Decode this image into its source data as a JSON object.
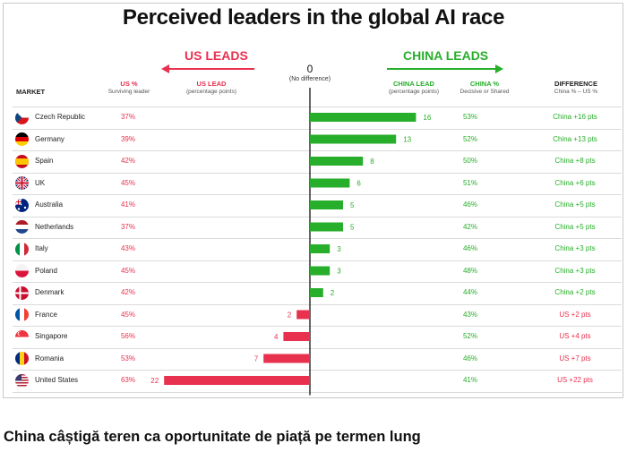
{
  "title": "Perceived leaders in the global AI race",
  "caption": "China câștigă teren ca oportunitate de piață pe termen lung",
  "headers": {
    "us_leads": "US LEADS",
    "china_leads": "CHINA LEADS",
    "zero": "0",
    "zero_sub": "(No difference)",
    "market": "MARKET",
    "us_pct": "US %",
    "us_pct_sub": "Surviving leader",
    "us_lead": "US LEAD",
    "us_lead_sub": "(percentage points)",
    "china_lead": "CHINA LEAD",
    "china_lead_sub": "(percentage points)",
    "china_pct": "CHINA %",
    "china_pct_sub": "Decisive or Shared",
    "difference": "DIFFERENCE",
    "difference_sub": "China % – US %"
  },
  "colors": {
    "us": "#e8304f",
    "china": "#27ae2a"
  },
  "chart_data": {
    "type": "bar",
    "orientation": "horizontal-diverging",
    "categories": [
      "Czech Republic",
      "Germany",
      "Spain",
      "UK",
      "Australia",
      "Netherlands",
      "Italy",
      "Poland",
      "Denmark",
      "France",
      "Singapore",
      "Romania",
      "United States"
    ],
    "flags": [
      "flag-czech-icon",
      "flag-germany-icon",
      "flag-spain-icon",
      "flag-uk-icon",
      "flag-australia-icon",
      "flag-netherlands-icon",
      "flag-italy-icon",
      "flag-poland-icon",
      "flag-denmark-icon",
      "flag-france-icon",
      "flag-singapore-icon",
      "flag-romania-icon",
      "flag-usa-icon"
    ],
    "us_pct": [
      "37%",
      "39%",
      "42%",
      "45%",
      "41%",
      "37%",
      "43%",
      "45%",
      "42%",
      "45%",
      "56%",
      "53%",
      "63%"
    ],
    "china_pct": [
      "53%",
      "52%",
      "50%",
      "51%",
      "46%",
      "42%",
      "46%",
      "48%",
      "44%",
      "43%",
      "52%",
      "46%",
      "41%"
    ],
    "lead": [
      16,
      13,
      8,
      6,
      5,
      5,
      3,
      3,
      2,
      -2,
      -4,
      -7,
      -22
    ],
    "lead_labels": [
      "16",
      "13",
      "8",
      "6",
      "5",
      "5",
      "3",
      "3",
      "2",
      "2",
      "4",
      "7",
      "22"
    ],
    "difference": [
      "China +16 pts",
      "China +13 pts",
      "China +8 pts",
      "China +6 pts",
      "China +5 pts",
      "China +5 pts",
      "China +3 pts",
      "China +3 pts",
      "China +2 pts",
      "US +2 pts",
      "US +4 pts",
      "US +7 pts",
      "US +22 pts"
    ],
    "xlim": [
      -22,
      16
    ]
  }
}
